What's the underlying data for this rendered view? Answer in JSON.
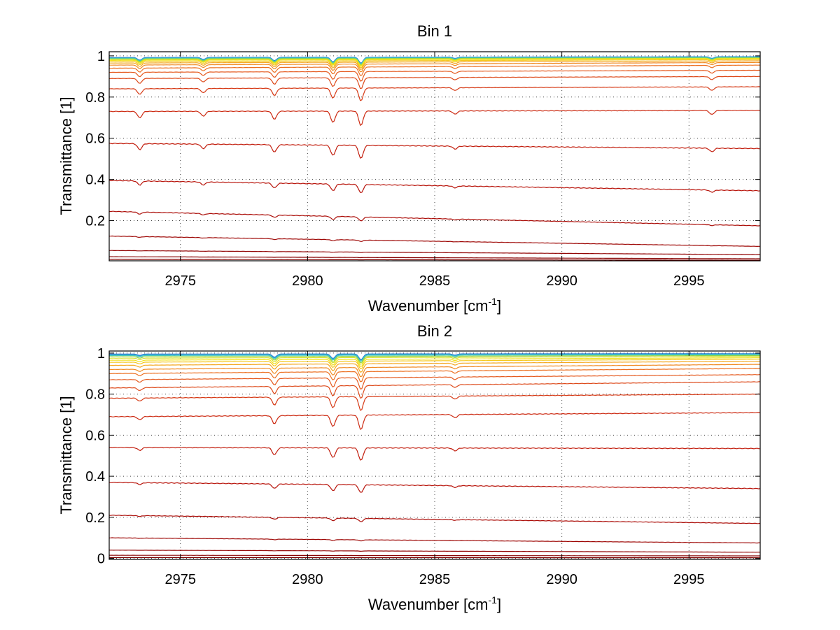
{
  "chart_data": [
    {
      "type": "line",
      "title": "Bin 1",
      "xlabel_main": "Wavenumber [cm",
      "xlabel_sup": "-1",
      "xlabel_end": "]",
      "ylabel": "Transmittance [1]",
      "xlim": [
        2972.2,
        2997.8
      ],
      "ylim": [
        0.005,
        1.02
      ],
      "xticks": [
        {
          "value": 2975,
          "label": "2975"
        },
        {
          "value": 2980,
          "label": "2980"
        },
        {
          "value": 2985,
          "label": "2985"
        },
        {
          "value": 2990,
          "label": "2990"
        },
        {
          "value": 2995,
          "label": "2995"
        }
      ],
      "yticks": [
        {
          "value": 0.2,
          "label": "0.2"
        },
        {
          "value": 0.4,
          "label": "0.4"
        },
        {
          "value": 0.6,
          "label": "0.6"
        },
        {
          "value": 0.8,
          "label": "0.8"
        },
        {
          "value": 1,
          "label": "1"
        }
      ],
      "grid": true,
      "absorption_lines": [
        {
          "x": 2973.4,
          "rel_depth": 0.04
        },
        {
          "x": 2975.9,
          "rel_depth": 0.03
        },
        {
          "x": 2978.7,
          "rel_depth": 0.05
        },
        {
          "x": 2981.0,
          "rel_depth": 0.07
        },
        {
          "x": 2982.1,
          "rel_depth": 0.09
        },
        {
          "x": 2985.8,
          "rel_depth": 0.02
        },
        {
          "x": 2995.9,
          "rel_depth": 0.025
        }
      ],
      "series": [
        {
          "start": 0.992,
          "end": 0.996,
          "color": "#1f6fd0"
        },
        {
          "start": 0.99,
          "end": 0.995,
          "color": "#2fa6d8"
        },
        {
          "start": 0.988,
          "end": 0.993,
          "color": "#45c8b8"
        },
        {
          "start": 0.985,
          "end": 0.99,
          "color": "#8fd44a"
        },
        {
          "start": 0.982,
          "end": 0.988,
          "color": "#d8e12a"
        },
        {
          "start": 0.978,
          "end": 0.986,
          "color": "#f2e11b"
        },
        {
          "start": 0.972,
          "end": 0.982,
          "color": "#f5c81c"
        },
        {
          "start": 0.965,
          "end": 0.976,
          "color": "#f4a821"
        },
        {
          "start": 0.955,
          "end": 0.968,
          "color": "#f08a22"
        },
        {
          "start": 0.94,
          "end": 0.955,
          "color": "#ec7022"
        },
        {
          "start": 0.92,
          "end": 0.93,
          "color": "#e55a1f"
        },
        {
          "start": 0.89,
          "end": 0.9,
          "color": "#dd4a1b"
        },
        {
          "start": 0.84,
          "end": 0.85,
          "color": "#d63a16"
        },
        {
          "start": 0.73,
          "end": 0.735,
          "color": "#cc2a12"
        },
        {
          "start": 0.575,
          "end": 0.55,
          "color": "#c21e0e"
        },
        {
          "start": 0.395,
          "end": 0.345,
          "color": "#b8140b"
        },
        {
          "start": 0.245,
          "end": 0.175,
          "color": "#ab0d08"
        },
        {
          "start": 0.125,
          "end": 0.075,
          "color": "#9e0806"
        },
        {
          "start": 0.055,
          "end": 0.035,
          "color": "#920505"
        },
        {
          "start": 0.025,
          "end": 0.015,
          "color": "#870303"
        },
        {
          "start": 0.012,
          "end": 0.008,
          "color": "#7e0202"
        }
      ]
    },
    {
      "type": "line",
      "title": "Bin 2",
      "xlabel_main": "Wavenumber [cm",
      "xlabel_sup": "-1",
      "xlabel_end": "]",
      "ylabel": "Transmittance [1]",
      "xlim": [
        2972.2,
        2997.8
      ],
      "ylim": [
        -0.005,
        1.01
      ],
      "xticks": [
        {
          "value": 2975,
          "label": "2975"
        },
        {
          "value": 2980,
          "label": "2980"
        },
        {
          "value": 2985,
          "label": "2985"
        },
        {
          "value": 2990,
          "label": "2990"
        },
        {
          "value": 2995,
          "label": "2995"
        }
      ],
      "yticks": [
        {
          "value": 0,
          "label": "0"
        },
        {
          "value": 0.2,
          "label": "0.2"
        },
        {
          "value": 0.4,
          "label": "0.4"
        },
        {
          "value": 0.6,
          "label": "0.6"
        },
        {
          "value": 0.8,
          "label": "0.8"
        },
        {
          "value": 1,
          "label": "1"
        }
      ],
      "grid": true,
      "absorption_lines": [
        {
          "x": 2973.4,
          "rel_depth": 0.02
        },
        {
          "x": 2978.7,
          "rel_depth": 0.05
        },
        {
          "x": 2981.0,
          "rel_depth": 0.07
        },
        {
          "x": 2982.1,
          "rel_depth": 0.09
        },
        {
          "x": 2985.8,
          "rel_depth": 0.02
        }
      ],
      "series": [
        {
          "start": 0.995,
          "end": 0.997,
          "color": "#1f6fd0"
        },
        {
          "start": 0.992,
          "end": 0.995,
          "color": "#2fa6d8"
        },
        {
          "start": 0.988,
          "end": 0.992,
          "color": "#45c8b8"
        },
        {
          "start": 0.982,
          "end": 0.988,
          "color": "#8fd44a"
        },
        {
          "start": 0.975,
          "end": 0.983,
          "color": "#d8e12a"
        },
        {
          "start": 0.965,
          "end": 0.977,
          "color": "#f2e11b"
        },
        {
          "start": 0.955,
          "end": 0.97,
          "color": "#f5c81c"
        },
        {
          "start": 0.94,
          "end": 0.96,
          "color": "#f4a821"
        },
        {
          "start": 0.92,
          "end": 0.945,
          "color": "#f08a22"
        },
        {
          "start": 0.9,
          "end": 0.925,
          "color": "#ec7022"
        },
        {
          "start": 0.87,
          "end": 0.895,
          "color": "#e55a1f"
        },
        {
          "start": 0.83,
          "end": 0.86,
          "color": "#dd4a1b"
        },
        {
          "start": 0.78,
          "end": 0.8,
          "color": "#d63a16"
        },
        {
          "start": 0.69,
          "end": 0.71,
          "color": "#cc2a12"
        },
        {
          "start": 0.54,
          "end": 0.535,
          "color": "#c21e0e"
        },
        {
          "start": 0.37,
          "end": 0.34,
          "color": "#b8140b"
        },
        {
          "start": 0.21,
          "end": 0.17,
          "color": "#ab0d08"
        },
        {
          "start": 0.1,
          "end": 0.075,
          "color": "#9e0806"
        },
        {
          "start": 0.04,
          "end": 0.03,
          "color": "#920505"
        },
        {
          "start": 0.015,
          "end": 0.012,
          "color": "#870303"
        },
        {
          "start": 0.004,
          "end": 0.003,
          "color": "#7e0202"
        }
      ]
    }
  ]
}
